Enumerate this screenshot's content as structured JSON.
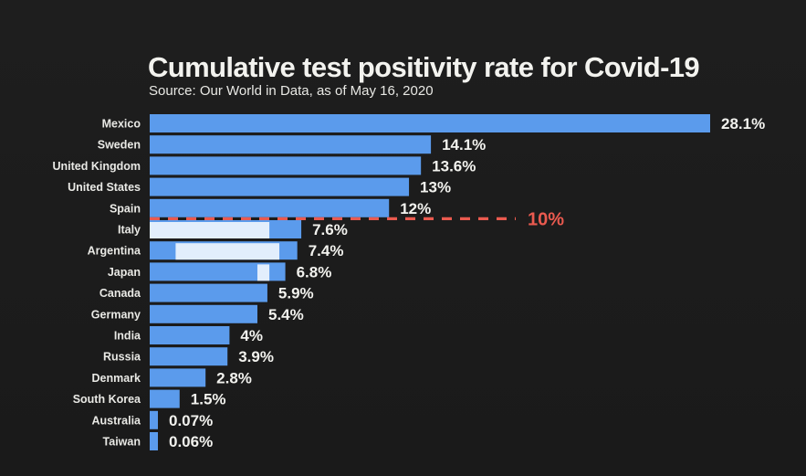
{
  "title": "Cumulative test positivity rate for Covid-19",
  "subtitle": "Source: Our World in Data, as of May 16, 2020",
  "colors": {
    "bar": "#5b9bec",
    "highlight": "#e2eefc",
    "reference": "#ea5a4f",
    "text": "#f2f2ee",
    "background": "#1b1b1b"
  },
  "chart_data": {
    "type": "bar",
    "orientation": "horizontal",
    "title": "Cumulative test positivity rate for Covid-19",
    "subtitle": "Source: Our World in Data, as of May 16, 2020",
    "categories": [
      "Mexico",
      "Sweden",
      "United Kingdom",
      "United States",
      "Spain",
      "Italy",
      "Argentina",
      "Japan",
      "Canada",
      "Germany",
      "India",
      "Russia",
      "Denmark",
      "South Korea",
      "Australia",
      "Taiwan"
    ],
    "values": [
      28.1,
      14.1,
      13.6,
      13,
      12,
      7.6,
      7.4,
      6.8,
      5.9,
      5.4,
      4,
      3.9,
      2.8,
      1.5,
      0.07,
      0.06
    ],
    "value_labels": [
      "28.1%",
      "14.1%",
      "13.6%",
      "13%",
      "12%",
      "7.6%",
      "7.4%",
      "6.8%",
      "5.9%",
      "5.4%",
      "4%",
      "3.9%",
      "2.8%",
      "1.5%",
      "0.07%",
      "0.06%"
    ],
    "highlights": [
      {
        "category": "Italy",
        "from": 0,
        "to": 6
      },
      {
        "category": "Argentina",
        "from": 1.3,
        "to": 6.5
      },
      {
        "category": "Japan",
        "from": 5.4,
        "to": 6
      }
    ],
    "reference_line": {
      "value": 10,
      "label": "10%",
      "style": "dashed"
    },
    "xlim": [
      0,
      28.1
    ],
    "grid": false,
    "legend": "none"
  }
}
